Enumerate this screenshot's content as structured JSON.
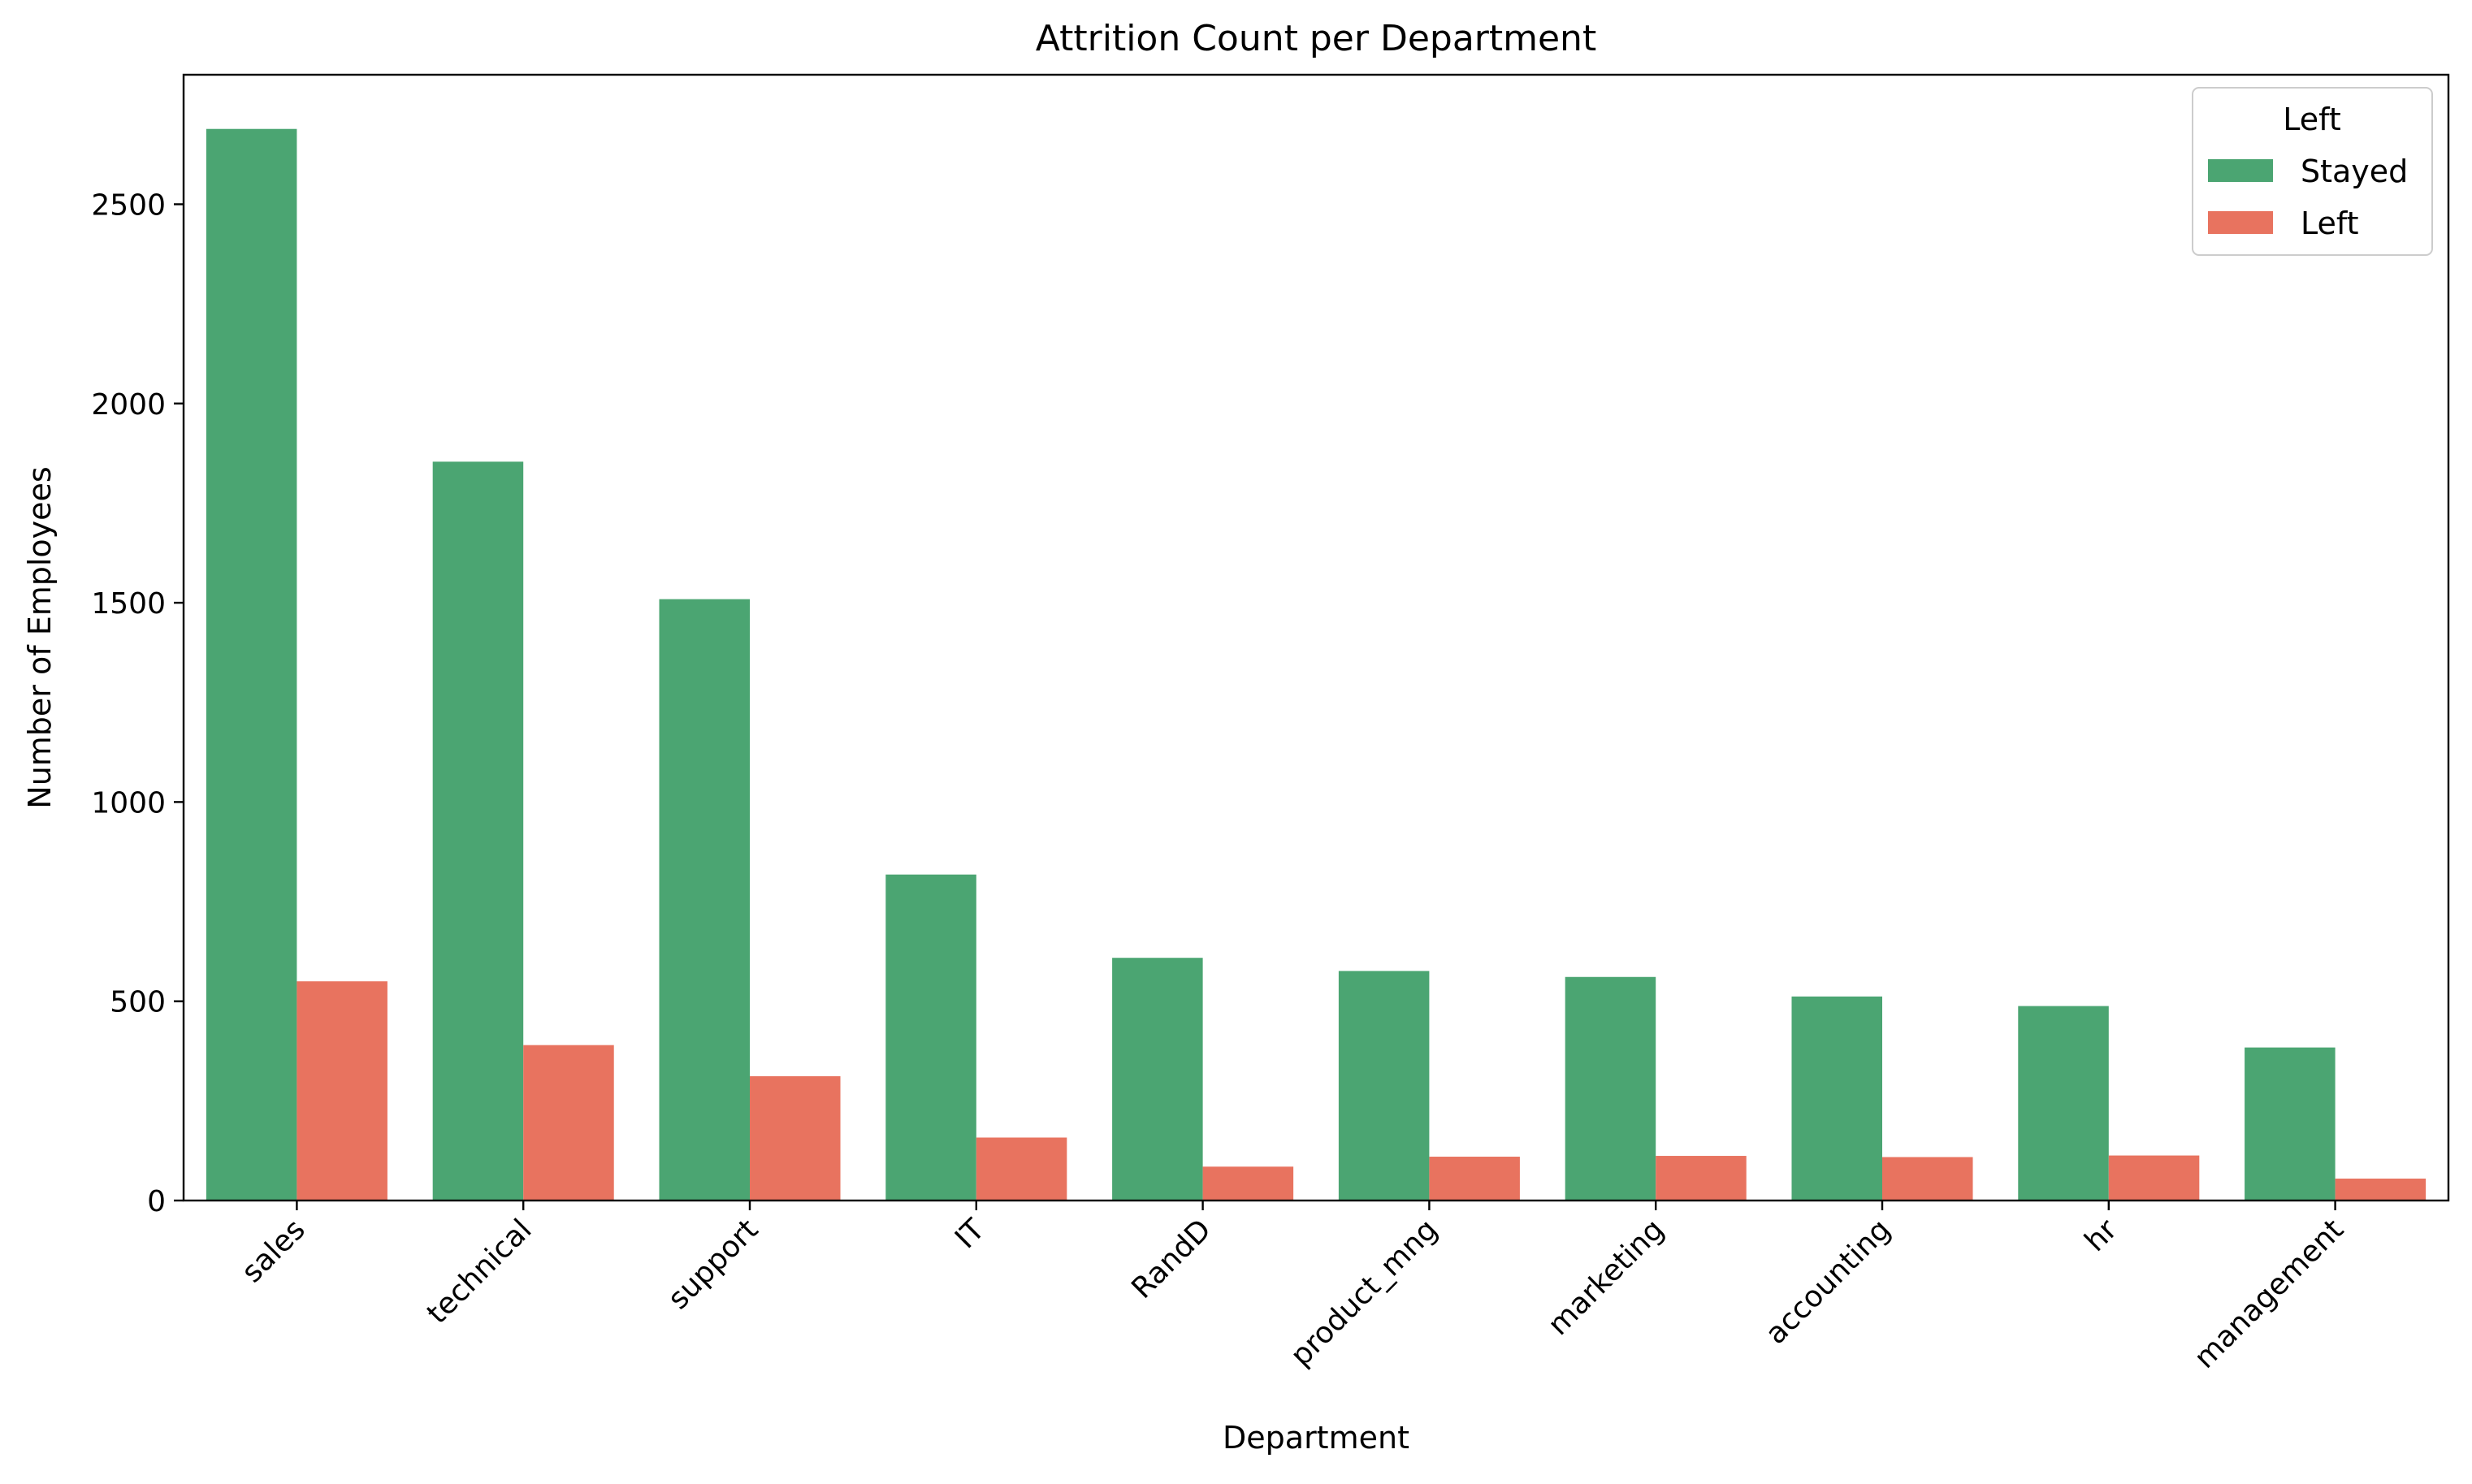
{
  "chart_data": {
    "type": "bar",
    "title": "Attrition Count per Department",
    "xlabel": "Department",
    "ylabel": "Number of Employees",
    "categories": [
      "sales",
      "technical",
      "support",
      "IT",
      "RandD",
      "product_mng",
      "marketing",
      "accounting",
      "hr",
      "management"
    ],
    "series": [
      {
        "name": "Stayed",
        "color": "#4ba572",
        "values": [
          2689,
          1854,
          1509,
          818,
          609,
          576,
          561,
          512,
          488,
          384
        ]
      },
      {
        "name": "Left",
        "color": "#e8735f",
        "values": [
          550,
          390,
          312,
          158,
          85,
          110,
          112,
          109,
          113,
          55
        ]
      }
    ],
    "ylim": [
      0,
      2825
    ],
    "yticks": [
      0,
      500,
      1000,
      1500,
      2000,
      2500
    ],
    "grid": false,
    "legend": {
      "title": "Left",
      "placement": "top-right"
    }
  }
}
